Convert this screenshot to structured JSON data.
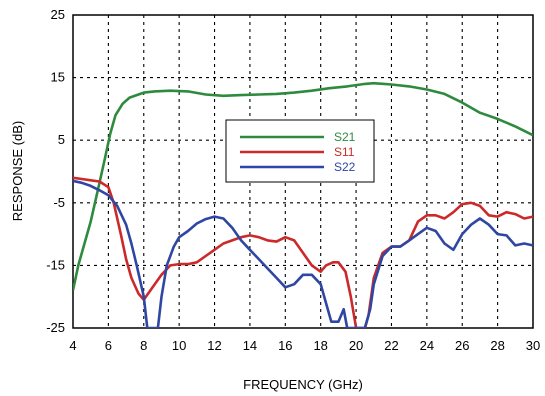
{
  "chart_data": {
    "type": "line",
    "title": "",
    "xlabel": "FREQUENCY (GHz)",
    "ylabel": "RESPONSE (dB)",
    "xlim": [
      4,
      30
    ],
    "ylim": [
      -25,
      25
    ],
    "x_ticks": [
      4,
      6,
      8,
      10,
      12,
      14,
      16,
      18,
      20,
      22,
      24,
      26,
      28,
      30
    ],
    "y_ticks": [
      25,
      15,
      5,
      -5,
      -15,
      -25
    ],
    "x_tick_labels": [
      "4",
      "6",
      "8",
      "10",
      "12",
      "14",
      "16",
      "18",
      "20",
      "22",
      "24",
      "26",
      "28",
      "30"
    ],
    "y_tick_labels": [
      "25",
      "15",
      "5",
      "-5",
      "-15",
      "-25"
    ],
    "grid": true,
    "legend_position": "center-left",
    "series": [
      {
        "name": "S21",
        "color": "#2e8b3e",
        "x": [
          4,
          4.3,
          4.6,
          5,
          5.4,
          5.8,
          6.1,
          6.4,
          6.8,
          7.2,
          7.6,
          8,
          8.6,
          9.5,
          10.5,
          11.5,
          12.5,
          13.5,
          14.5,
          15.5,
          16.5,
          17.5,
          18.5,
          19.5,
          20.5,
          21,
          22,
          23,
          24,
          25,
          26,
          27,
          28,
          29,
          30
        ],
        "y": [
          -19,
          -15,
          -12,
          -8,
          -3,
          2,
          6,
          9,
          10.8,
          11.8,
          12.2,
          12.6,
          12.8,
          12.9,
          12.8,
          12.3,
          12.1,
          12.2,
          12.3,
          12.4,
          12.6,
          12.9,
          13.3,
          13.6,
          14,
          14.1,
          13.9,
          13.6,
          13.1,
          12.4,
          11,
          9.4,
          8.4,
          7.2,
          5.8
        ]
      },
      {
        "name": "S11",
        "color": "#cc2a2a",
        "x": [
          4,
          4.5,
          5,
          5.5,
          6,
          6.3,
          6.7,
          7,
          7.3,
          7.7,
          8,
          8.5,
          9,
          9.5,
          10,
          10.5,
          11,
          11.5,
          12,
          12.5,
          13,
          13.5,
          14,
          14.5,
          15,
          15.5,
          16,
          16.5,
          17,
          17.5,
          18,
          18.3,
          18.7,
          19,
          19.4,
          19.7,
          20,
          20.3,
          20.5,
          20.7,
          21,
          21.5,
          22,
          22.5,
          23,
          23.5,
          24,
          24.5,
          25,
          25.5,
          26,
          26.5,
          27,
          27.5,
          28,
          28.5,
          29,
          29.5,
          30
        ],
        "y": [
          -1,
          -1.2,
          -1.4,
          -1.6,
          -2.5,
          -5,
          -10,
          -14,
          -17,
          -19.5,
          -20.5,
          -18.5,
          -16.5,
          -15,
          -14.8,
          -14.8,
          -14.5,
          -13.5,
          -12.5,
          -11.5,
          -11,
          -10.5,
          -10.2,
          -10.5,
          -11,
          -11.2,
          -10.5,
          -11,
          -13,
          -15,
          -16,
          -15,
          -14.5,
          -14.5,
          -16,
          -20,
          -25,
          -25,
          -25,
          -23,
          -17,
          -13,
          -12,
          -12,
          -11,
          -8,
          -7,
          -7,
          -7.5,
          -6.5,
          -5.2,
          -5,
          -5.5,
          -7,
          -7.2,
          -6.5,
          -6.8,
          -7.5,
          -7.2
        ]
      },
      {
        "name": "S22",
        "color": "#2f47a3",
        "x": [
          4,
          4.5,
          5,
          5.5,
          6,
          6.5,
          7,
          7.3,
          7.6,
          8,
          8.2,
          8.5,
          8.8,
          9,
          9.3,
          9.7,
          10,
          10.5,
          11,
          11.5,
          12,
          12.5,
          13,
          13.5,
          14,
          14.5,
          15,
          15.5,
          16,
          16.5,
          17,
          17.5,
          18,
          18.3,
          18.6,
          19,
          19.3,
          19.5,
          20,
          20.3,
          20.5,
          20.8,
          21,
          21.5,
          22,
          22.5,
          23,
          23.5,
          24,
          24.5,
          25,
          25.5,
          26,
          26.5,
          27,
          27.5,
          28,
          28.5,
          29,
          29.5,
          30
        ],
        "y": [
          -1.5,
          -1.8,
          -2.3,
          -3,
          -3.8,
          -5.5,
          -8.5,
          -11.5,
          -15,
          -20,
          -25,
          -25,
          -25,
          -20,
          -15,
          -12,
          -10.5,
          -9.5,
          -8.3,
          -7.6,
          -7.2,
          -7.5,
          -9,
          -11,
          -12.5,
          -14,
          -15.5,
          -17,
          -18.5,
          -18,
          -16.5,
          -16.5,
          -18,
          -21,
          -24,
          -24,
          -22,
          -25,
          -25,
          -25,
          -25,
          -22,
          -18,
          -13.5,
          -12,
          -12,
          -11,
          -10,
          -9,
          -9.5,
          -11.5,
          -12.5,
          -10,
          -8.5,
          -7.5,
          -8.5,
          -10,
          -10.2,
          -11.8,
          -11.5,
          -11.8
        ]
      }
    ]
  }
}
